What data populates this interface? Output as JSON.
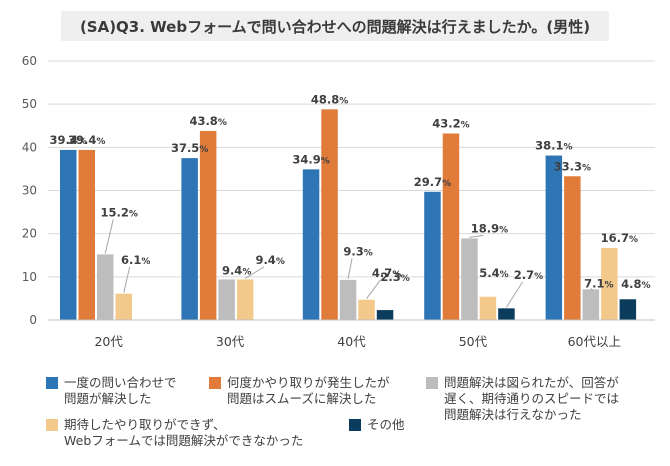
{
  "chart_data": {
    "type": "bar",
    "title": "(SA)Q3. Webフォームで問い合わせへの問題解決は行えましたか。(男性)",
    "categories": [
      "20代",
      "30代",
      "40代",
      "50代",
      "60代以上"
    ],
    "ylim": [
      0,
      60
    ],
    "yticks": [
      0,
      10,
      20,
      30,
      40,
      50,
      60
    ],
    "grid": true,
    "legend_position": "bottom",
    "series": [
      {
        "name": "一度の問い合わせで\n問題が解決した",
        "color": "#2e75b6",
        "values": [
          39.4,
          37.5,
          34.9,
          29.7,
          38.1
        ]
      },
      {
        "name": "何度かやり取りが発生したが\n問題はスムーズに解決した",
        "color": "#e07b39",
        "values": [
          39.4,
          43.8,
          48.8,
          43.2,
          33.3
        ]
      },
      {
        "name": "問題解決は図られたが、回答が\n遅く、期待通りのスピードでは\n問題解決は行えなかった",
        "color": "#bdbdbd",
        "values": [
          15.2,
          9.4,
          9.3,
          18.9,
          7.1
        ]
      },
      {
        "name": "期待したやり取りができず、\nWebフォームでは問題解決ができなかった",
        "color": "#f2c98a",
        "values": [
          6.1,
          9.4,
          4.7,
          5.4,
          16.7
        ]
      },
      {
        "name": "その他",
        "color": "#0b3c5d",
        "values": [
          0,
          0,
          2.3,
          2.7,
          4.8
        ]
      }
    ]
  }
}
